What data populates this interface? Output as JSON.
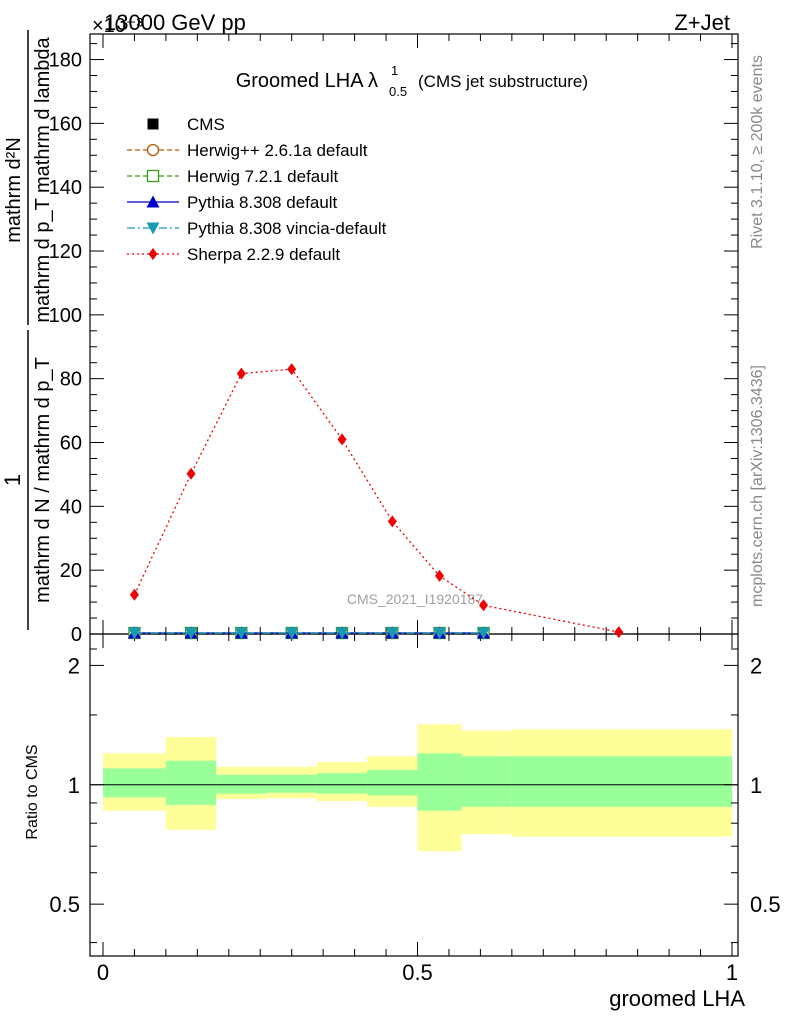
{
  "header": {
    "energy_label": "13000 GeV pp",
    "process_label": "Z+Jet",
    "exponent_label": "×10⁻³",
    "side_label_top": "Rivet 3.1.10, ≥ 200k events",
    "side_label_bottom": "mcplots.cern.ch [arXiv:1306.3436]",
    "watermark": "CMS_2021_I1920187"
  },
  "chart_data": [
    {
      "type": "line",
      "title_main": "Groomed LHA λ",
      "title_sup": "1",
      "title_sub": "0.5",
      "title_suffix": "(CMS jet substructure)",
      "ylabel_numerator": "mathrm d²N",
      "ylabel_denominator": "mathrm d p_T mathrm d lambda",
      "ylabel_prefix_num": "1",
      "ylabel_prefix_den": "mathrm d N / mathrm d p_T",
      "ylim": [
        0,
        188
      ],
      "xlim": [
        0,
        1
      ],
      "yticks": [
        0,
        20,
        40,
        60,
        80,
        100,
        120,
        140,
        160,
        180
      ],
      "legend_position": "top-left",
      "series": [
        {
          "name": "CMS",
          "style": "square-filled",
          "color": "#000000",
          "x": [
            0.05,
            0.14,
            0.22,
            0.3,
            0.38,
            0.46,
            0.535,
            0.605
          ],
          "y": [
            0.3,
            0.3,
            0.3,
            0.3,
            0.3,
            0.3,
            0.3,
            0.3
          ]
        },
        {
          "name": "Herwig++ 2.6.1a default",
          "style": "circle-open-dashed",
          "color": "#b05a00",
          "x": [
            0.05,
            0.14,
            0.22,
            0.3,
            0.38,
            0.46,
            0.535,
            0.605
          ],
          "y": [
            0.3,
            0.3,
            0.3,
            0.3,
            0.3,
            0.3,
            0.3,
            0.3
          ]
        },
        {
          "name": "Herwig 7.2.1 default",
          "style": "square-open-dashed",
          "color": "#3a9a1a",
          "x": [
            0.05,
            0.14,
            0.22,
            0.3,
            0.38,
            0.46,
            0.535,
            0.605
          ],
          "y": [
            0.3,
            0.3,
            0.3,
            0.3,
            0.3,
            0.3,
            0.3,
            0.3
          ]
        },
        {
          "name": "Pythia 8.308 default",
          "style": "triangle-up-solid",
          "color": "#0000cc",
          "x": [
            0.05,
            0.14,
            0.22,
            0.3,
            0.38,
            0.46,
            0.535,
            0.605
          ],
          "y": [
            0.3,
            0.3,
            0.3,
            0.3,
            0.3,
            0.3,
            0.3,
            0.3
          ]
        },
        {
          "name": "Pythia 8.308 vincia-default",
          "style": "triangle-down-dashdot",
          "color": "#1a9ab0",
          "x": [
            0.05,
            0.14,
            0.22,
            0.3,
            0.38,
            0.46,
            0.535,
            0.605
          ],
          "y": [
            0.3,
            0.3,
            0.3,
            0.3,
            0.3,
            0.3,
            0.3,
            0.3
          ]
        },
        {
          "name": "Sherpa 2.2.9 default",
          "style": "diamond-dotted",
          "color": "#ee0000",
          "x": [
            0.05,
            0.14,
            0.22,
            0.3,
            0.38,
            0.46,
            0.535,
            0.605,
            0.82
          ],
          "y": [
            12.3,
            50.2,
            81.6,
            83.0,
            61.0,
            35.3,
            18.2,
            9.0,
            0.6
          ]
        }
      ]
    },
    {
      "type": "area",
      "ylabel": "Ratio to CMS",
      "xlabel": "groomed LHA",
      "xlim": [
        0,
        1
      ],
      "ylim": [
        0.37,
        2.4
      ],
      "log_scale_y": true,
      "yticks": [
        0.5,
        1,
        2
      ],
      "xticks": [
        0,
        0.5,
        1
      ],
      "bin_edges": [
        0.0,
        0.1,
        0.18,
        0.26,
        0.34,
        0.42,
        0.5,
        0.57,
        0.65,
        1.0
      ],
      "band_inner_color": "#99ff99",
      "band_outer_color": "#ffff99",
      "inner_low": [
        0.93,
        0.89,
        0.95,
        0.955,
        0.95,
        0.94,
        0.86,
        0.88,
        0.88
      ],
      "inner_high": [
        1.1,
        1.15,
        1.06,
        1.06,
        1.07,
        1.09,
        1.2,
        1.18,
        1.18
      ],
      "outer_low": [
        0.86,
        0.77,
        0.92,
        0.925,
        0.91,
        0.88,
        0.68,
        0.75,
        0.74
      ],
      "outer_high": [
        1.2,
        1.32,
        1.11,
        1.11,
        1.14,
        1.18,
        1.42,
        1.37,
        1.38
      ]
    }
  ]
}
